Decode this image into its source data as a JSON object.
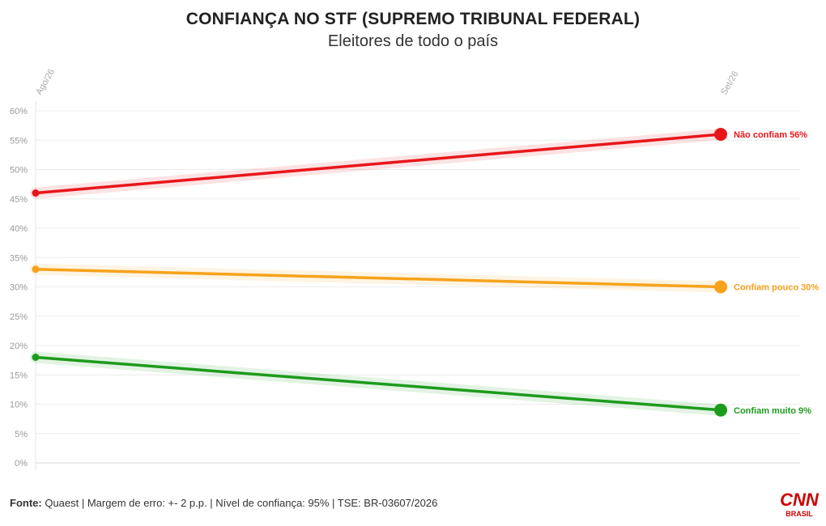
{
  "title": "CONFIANÇA NO STF (SUPREMO TRIBUNAL FEDERAL)",
  "subtitle": "Eleitores de todo o país",
  "footer": {
    "source_label": "Fonte:",
    "source_text": "Quaest | Margem de erro: +- 2 p.p. | Nível de confiança: 95% | TSE: BR-03607/2026"
  },
  "logo": {
    "brand": "CNN",
    "sub": "BRASIL",
    "color": "#cc0000"
  },
  "chart_data": {
    "type": "line",
    "x": [
      "Ago/26",
      "Set/26"
    ],
    "ylim": [
      0,
      60
    ],
    "yticks": [
      0,
      5,
      10,
      15,
      20,
      25,
      30,
      35,
      40,
      45,
      50,
      55,
      60
    ],
    "ytick_labels": [
      "0%",
      "5%",
      "10%",
      "15%",
      "20%",
      "25%",
      "30%",
      "35%",
      "40%",
      "45%",
      "50%",
      "55%",
      "60%"
    ],
    "grid": true,
    "series": [
      {
        "name": "Não confiam",
        "values": [
          46,
          56
        ],
        "end_label": "Não confiam 56%",
        "color": "#e8161b"
      },
      {
        "name": "Confiam pouco",
        "values": [
          33,
          30
        ],
        "end_label": "Confiam pouco 30%",
        "color": "#f7a21b"
      },
      {
        "name": "Confiam muito",
        "values": [
          18,
          9
        ],
        "end_label": "Confiam muito 9%",
        "color": "#1c9b1c"
      }
    ]
  }
}
